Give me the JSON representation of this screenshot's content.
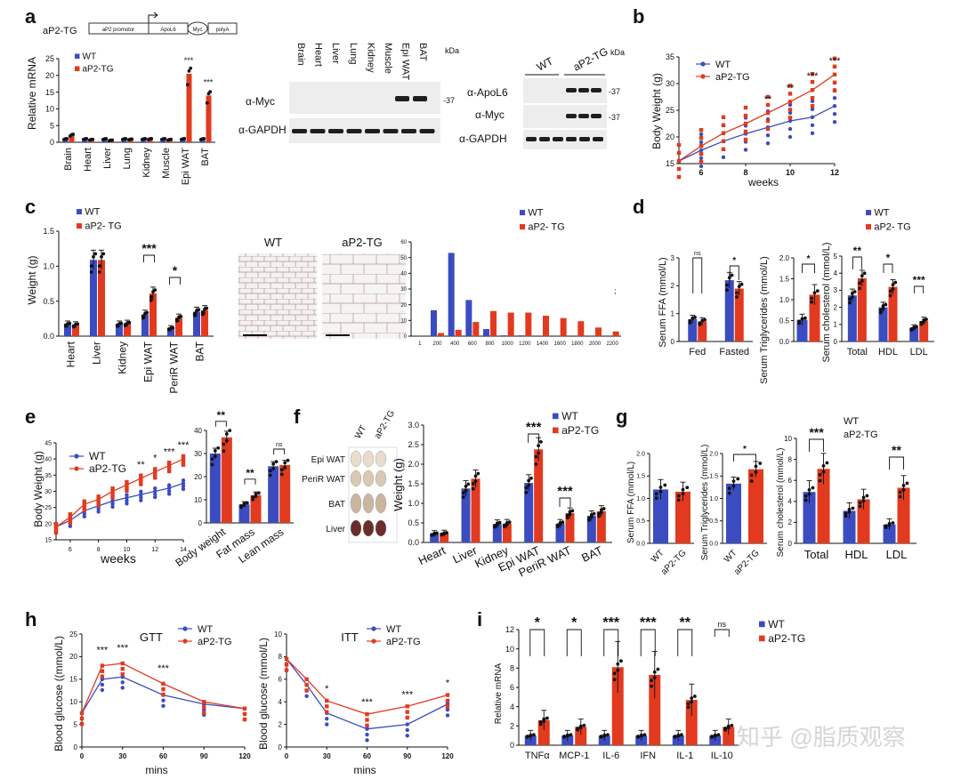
{
  "watermark": "知乎 @脂质观察",
  "colors": {
    "wt": "#3b4cc0",
    "tg": "#e23a1f",
    "blot_bg": "#ededed",
    "band": "#1e1e1e",
    "adipo_edge": "#b39494"
  },
  "panels": {
    "a": "a",
    "b": "b",
    "c": "c",
    "d": "d",
    "e": "e",
    "f": "f",
    "g": "g",
    "h": "h",
    "i": "i"
  },
  "chart_data": [
    {
      "id": "a-construct",
      "type": "other",
      "title": "aP2-TG",
      "segments": [
        "aP2 promotor",
        "ApoL6",
        "Myc",
        "polyA"
      ]
    },
    {
      "id": "a-mrna",
      "type": "bar",
      "ylabel": "Relative mRNA",
      "ylim": [
        0,
        25
      ],
      "yticks": [
        0,
        5,
        10,
        15,
        20,
        25
      ],
      "categories": [
        "Brain",
        "Heart",
        "Liver",
        "Lung",
        "Kidney",
        "Muscle",
        "Epi WAT",
        "BAT"
      ],
      "series": [
        {
          "name": "WT",
          "values": [
            1,
            1,
            1,
            1,
            1,
            1,
            1,
            1
          ]
        },
        {
          "name": "aP2-TG",
          "values": [
            2.2,
            0.8,
            0.6,
            0.9,
            1.0,
            0.8,
            20.5,
            14
          ]
        }
      ],
      "sig": [
        {
          "index": 6,
          "label": "***"
        },
        {
          "index": 7,
          "label": "***"
        }
      ]
    },
    {
      "id": "a-blot1",
      "type": "blot",
      "lanes": [
        "Brain",
        "Heart",
        "Liver",
        "Lung",
        "Kidney",
        "Muscle",
        "Epi WAT",
        "BAT"
      ],
      "rows": [
        "α-Myc",
        "α-GAPDH"
      ],
      "units": "kDa",
      "marker": "-37"
    },
    {
      "id": "a-blot2",
      "type": "blot",
      "lanes": [
        "WT",
        "aP2-TG"
      ],
      "rows": [
        "α-ApoL6",
        "α-Myc",
        "α-GAPDH"
      ],
      "units": "kDa",
      "markers": [
        "-37",
        "-37"
      ]
    },
    {
      "id": "b",
      "type": "line",
      "xlabel": "weeks",
      "ylabel": "Body Weight (g)",
      "xlim": [
        5,
        12
      ],
      "ylim": [
        15,
        35
      ],
      "xticks": [
        6,
        8,
        10,
        12
      ],
      "yticks": [
        15,
        20,
        25,
        30,
        35
      ],
      "x": [
        5,
        6,
        7,
        8,
        9,
        10,
        11,
        12
      ],
      "series": [
        {
          "name": "WT",
          "values": [
            15.5,
            17.5,
            19.2,
            20.6,
            21.8,
            23,
            23.7,
            25.8
          ]
        },
        {
          "name": "aP2-TG",
          "values": [
            15.5,
            18.3,
            20.7,
            22.5,
            24.5,
            26.6,
            28.8,
            31.7
          ]
        }
      ],
      "sig": [
        {
          "x": 9,
          "label": "**"
        },
        {
          "x": 10,
          "label": "**"
        },
        {
          "x": 11,
          "label": "***"
        },
        {
          "x": 12,
          "label": "***"
        }
      ]
    },
    {
      "id": "c-weight",
      "type": "bar",
      "ylabel": "Weight (g)",
      "ylim": [
        0,
        1.5
      ],
      "yticks": [
        "0.0",
        "0.5",
        "1.0",
        "1.5"
      ],
      "categories": [
        "Heart",
        "Liver",
        "Kidney",
        "Epi WAT",
        "PeriR WAT",
        "BAT"
      ],
      "series": [
        {
          "name": "WT",
          "values": [
            0.17,
            1.09,
            0.17,
            0.31,
            0.11,
            0.35
          ]
        },
        {
          "name": "aP2- TG",
          "values": [
            0.16,
            1.09,
            0.18,
            0.61,
            0.26,
            0.37
          ]
        }
      ],
      "sig": [
        {
          "index": 3,
          "label": "***"
        },
        {
          "index": 4,
          "label": "*"
        }
      ]
    },
    {
      "id": "c-histo",
      "type": "other",
      "labels": [
        "WT",
        "aP2-TG"
      ]
    },
    {
      "id": "c-dist",
      "type": "bar",
      "ylim": [
        0,
        60
      ],
      "yticks": [
        0,
        10,
        20,
        30,
        40,
        50,
        60
      ],
      "categories": [
        "1",
        "200",
        "400",
        "600",
        "800",
        "1000",
        "1200",
        "1400",
        "1600",
        "1800",
        "2000",
        "2200"
      ],
      "series": [
        {
          "name": "WT",
          "values": [
            0,
            16.5,
            53,
            23,
            4.5,
            0.5,
            0.5,
            0,
            0,
            0,
            0,
            0
          ]
        },
        {
          "name": "aP2- TG",
          "values": [
            0,
            2,
            4,
            9,
            16,
            15,
            15,
            13,
            11.5,
            9.5,
            5.5,
            3
          ]
        }
      ]
    },
    {
      "id": "d-ffa",
      "type": "bar",
      "ylabel": "Serum FFA (mmol/L)",
      "ylim": [
        0,
        3
      ],
      "yticks": [
        0,
        1,
        2,
        3
      ],
      "categories": [
        "Fed",
        "Fasted"
      ],
      "series": [
        {
          "name": "WT",
          "values": [
            0.8,
            2.2
          ]
        },
        {
          "name": "aP2- TG",
          "values": [
            0.72,
            1.9
          ]
        }
      ],
      "sig": [
        {
          "index": 0,
          "label": "ns"
        },
        {
          "index": 1,
          "label": "*"
        }
      ]
    },
    {
      "id": "d-tg",
      "type": "bar",
      "ylabel": "Serum Triglycerides (mmol/L)",
      "ylim": [
        0,
        2
      ],
      "yticks": [
        "0.0",
        "0.5",
        "1.0",
        "1.5",
        "2.0"
      ],
      "categories": [
        ""
      ],
      "series": [
        {
          "name": "WT",
          "values": [
            0.52
          ]
        },
        {
          "name": "aP2- TG",
          "values": [
            1.12
          ]
        }
      ],
      "sig": [
        {
          "index": 0,
          "label": "*"
        }
      ]
    },
    {
      "id": "d-chol",
      "type": "bar",
      "ylabel": "Serum cholesterol (mmol/L)",
      "ylim": [
        0,
        5
      ],
      "yticks": [
        0,
        1,
        2,
        3,
        4,
        5
      ],
      "categories": [
        "Total",
        "HDL",
        "LDL"
      ],
      "series": [
        {
          "name": "WT",
          "values": [
            2.7,
            2.0,
            0.8
          ]
        },
        {
          "name": "aP2- TG",
          "values": [
            3.7,
            3.2,
            1.2
          ]
        }
      ],
      "sig": [
        {
          "index": 0,
          "label": "**"
        },
        {
          "index": 1,
          "label": "*"
        },
        {
          "index": 2,
          "label": "***"
        }
      ]
    },
    {
      "id": "e-line",
      "type": "line",
      "xlabel": "weeks",
      "ylabel": "Body Weight (g)",
      "xlim": [
        5,
        14
      ],
      "ylim": [
        15,
        45
      ],
      "xticks": [
        6,
        8,
        10,
        12,
        14
      ],
      "yticks": [
        15,
        20,
        25,
        30,
        35,
        40,
        45
      ],
      "x": [
        5,
        6,
        7,
        8,
        9,
        10,
        11,
        12,
        13,
        14
      ],
      "series": [
        {
          "name": "WT",
          "values": [
            19,
            21,
            24,
            25.5,
            27,
            28,
            29,
            30,
            31,
            32.5
          ]
        },
        {
          "name": "aP2-TG",
          "values": [
            19,
            22,
            26,
            27.5,
            30,
            32,
            34,
            36,
            38,
            40
          ]
        }
      ],
      "sig": [
        {
          "x": 11,
          "label": "**"
        },
        {
          "x": 12,
          "label": "*"
        },
        {
          "x": 13,
          "label": "***"
        },
        {
          "x": 14,
          "label": "***"
        }
      ]
    },
    {
      "id": "e-bar",
      "type": "bar",
      "ylim": [
        0,
        40
      ],
      "yticks": [
        0,
        10,
        20,
        30,
        40
      ],
      "categories": [
        "Body weight",
        "Fat mass",
        "Lean mass"
      ],
      "series": [
        {
          "name": "WT",
          "values": [
            30,
            8,
            24.5
          ]
        },
        {
          "name": "aP2-TG",
          "values": [
            37,
            12,
            25
          ]
        }
      ],
      "sig": [
        {
          "index": 0,
          "label": "**"
        },
        {
          "index": 1,
          "label": "**"
        },
        {
          "index": 2,
          "label": "ns"
        }
      ]
    },
    {
      "id": "f-photo",
      "type": "other",
      "labels": [
        "WT",
        "aP2-TG"
      ],
      "rows": [
        "Epi WAT",
        "PeriR WAT",
        "BAT",
        "Liver"
      ]
    },
    {
      "id": "f-bar",
      "type": "bar",
      "ylabel": "Weight (g)",
      "ylim": [
        0,
        3
      ],
      "yticks": [
        "0.0",
        "0.5",
        "1.0",
        "1.5",
        "2.0",
        "2.5",
        "3.0"
      ],
      "categories": [
        "Heart",
        "Liver",
        "Kidney",
        "Epi WAT",
        "PeriR WAT",
        "BAT"
      ],
      "series": [
        {
          "name": "WT",
          "values": [
            0.22,
            1.38,
            0.47,
            1.52,
            0.48,
            0.68
          ]
        },
        {
          "name": "aP2-TG",
          "values": [
            0.23,
            1.63,
            0.48,
            2.38,
            0.75,
            0.8
          ]
        }
      ],
      "sig": [
        {
          "index": 3,
          "label": "***"
        },
        {
          "index": 4,
          "label": "***"
        }
      ]
    },
    {
      "id": "g-ffa",
      "type": "bar",
      "ylabel": "Serum FFA (mmol/L)",
      "ylim": [
        0,
        2
      ],
      "yticks": [
        "0.0",
        "0.5",
        "1.0",
        "1.5",
        "2.0"
      ],
      "categories": [
        "WT",
        "aP2-TG"
      ],
      "values": [
        1.2,
        1.15
      ]
    },
    {
      "id": "g-tg",
      "type": "bar",
      "ylabel": "Serum Triglycerides (mmol/L)",
      "ylim": [
        0,
        2
      ],
      "yticks": [
        "0.0",
        "0.5",
        "1.0",
        "1.5",
        "2.0"
      ],
      "categories": [
        "WT",
        "aP2-TG"
      ],
      "values": [
        1.33,
        1.65
      ],
      "sig": [
        {
          "label": "*"
        }
      ]
    },
    {
      "id": "g-chol",
      "type": "bar",
      "ylabel": "Serum cholesterol (mmol/L)",
      "ylim": [
        0,
        10
      ],
      "yticks": [
        0,
        2,
        4,
        6,
        8,
        10
      ],
      "categories": [
        "Total",
        "HDL",
        "LDL"
      ],
      "series": [
        {
          "name": "WT",
          "values": [
            4.9,
            3.1,
            1.8
          ]
        },
        {
          "name": "aP2-TG",
          "values": [
            7.1,
            4.2,
            5.3
          ]
        }
      ],
      "sig": [
        {
          "index": 0,
          "label": "***"
        },
        {
          "index": 2,
          "label": "**"
        }
      ]
    },
    {
      "id": "h-gtt",
      "type": "line",
      "title": "GTT",
      "xlabel": "mins",
      "ylabel": "Blood glucose ((mmol/L)",
      "xlim": [
        0,
        120
      ],
      "ylim": [
        0,
        25
      ],
      "xticks": [
        0,
        30,
        60,
        90,
        120
      ],
      "yticks": [
        0,
        5,
        10,
        15,
        20,
        25
      ],
      "x": [
        0,
        15,
        30,
        60,
        90,
        120
      ],
      "series": [
        {
          "name": "WT",
          "values": [
            7.5,
            15,
            15.5,
            11.5,
            9.5,
            8.5
          ]
        },
        {
          "name": "aP2-TG",
          "values": [
            7.5,
            18,
            18.5,
            14,
            10,
            8.5
          ]
        }
      ],
      "sig": [
        {
          "x": 15,
          "label": "***"
        },
        {
          "x": 30,
          "label": "***"
        },
        {
          "x": 60,
          "label": "***"
        }
      ]
    },
    {
      "id": "h-itt",
      "type": "line",
      "title": "ITT",
      "xlabel": "mins",
      "ylabel": "Blood glucose (mmol/L)",
      "xlim": [
        0,
        120
      ],
      "ylim": [
        0,
        10
      ],
      "xticks": [
        0,
        30,
        60,
        90,
        120
      ],
      "yticks": [
        0,
        2,
        4,
        6,
        8,
        10
      ],
      "x": [
        0,
        15,
        30,
        60,
        90,
        120
      ],
      "series": [
        {
          "name": "WT",
          "values": [
            7.8,
            5.5,
            3.0,
            1.6,
            2.0,
            3.8
          ]
        },
        {
          "name": "aP2-TG",
          "values": [
            7.8,
            6.0,
            4.1,
            2.9,
            3.6,
            4.6
          ]
        }
      ],
      "sig": [
        {
          "x": 30,
          "label": "*"
        },
        {
          "x": 60,
          "label": "***"
        },
        {
          "x": 90,
          "label": "***"
        },
        {
          "x": 120,
          "label": "*"
        }
      ]
    },
    {
      "id": "i",
      "type": "bar",
      "ylabel": "Relative mRNA",
      "ylim": [
        0,
        12
      ],
      "yticks": [
        0,
        2,
        4,
        6,
        8,
        10,
        12
      ],
      "categories": [
        "TNFα",
        "MCP-1",
        "IL-6",
        "IFN",
        "IL-1",
        "IL-10"
      ],
      "series": [
        {
          "name": "WT",
          "values": [
            1,
            1,
            1,
            1,
            1,
            1
          ]
        },
        {
          "name": "aP2-TG",
          "values": [
            2.6,
            1.9,
            8.1,
            7.3,
            4.7,
            1.9
          ]
        }
      ],
      "sig": [
        {
          "index": 0,
          "label": "*"
        },
        {
          "index": 1,
          "label": "*"
        },
        {
          "index": 2,
          "label": "***"
        },
        {
          "index": 3,
          "label": "***"
        },
        {
          "index": 4,
          "label": "**"
        },
        {
          "index": 5,
          "label": "ns"
        }
      ]
    }
  ]
}
